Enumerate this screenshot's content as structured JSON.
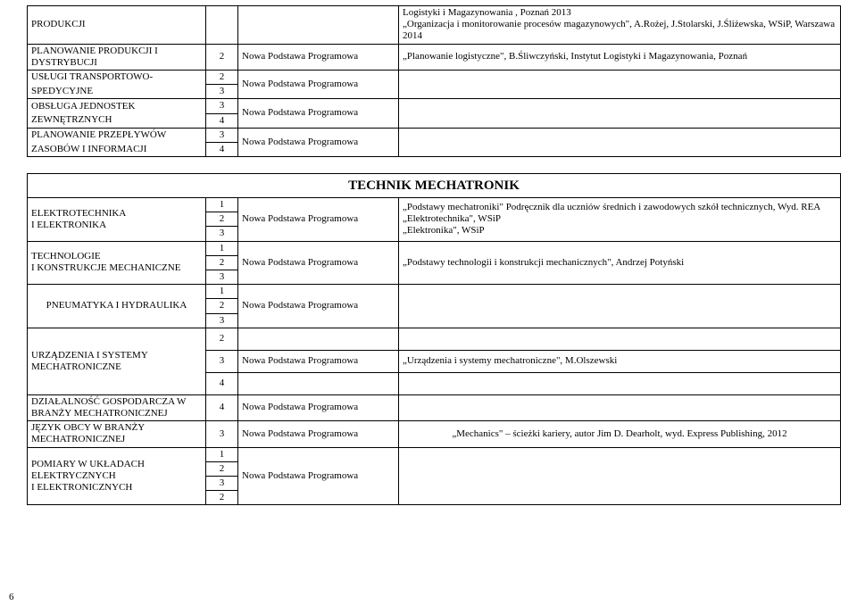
{
  "top_table": {
    "col3_text": "Nowa Podstawa Programowa",
    "rows": [
      {
        "label": "PRODUKCJI",
        "num": "",
        "desc": "Logistyki i Magazynowania , Poznań 2013\n„Organizacja i monitorowanie procesów magazynowych\", A.Rożej, J.Stolarski, J.Śliżewska, WSiP, Warszawa 2014"
      },
      {
        "label": "PLANOWANIE PRODUKCJI I DYSTRYBUCJI",
        "num": "2",
        "desc": "„Planowanie logistyczne\", B.Śliwczyński, Instytut Logistyki i Magazynowania, Poznań"
      },
      {
        "label_a": "USŁUGI TRANSPORTOWO-",
        "num_a": "2",
        "label_b": "SPEDYCYJNE",
        "num_b": "3",
        "desc": ""
      },
      {
        "label_a": "OBSŁUGA JEDNOSTEK",
        "num_a": "3",
        "label_b": "ZEWNĘTRZNYCH",
        "num_b": "4",
        "desc": ""
      },
      {
        "label_a": "PLANOWANIE PRZEPŁYWÓW",
        "num_a": "3",
        "label_b": "ZASOBÓW I INFORMACJI",
        "num_b": "4",
        "desc": ""
      }
    ]
  },
  "section_title": "TECHNIK MECHATRONIK",
  "bottom_table": {
    "col3_text": "Nowa Podstawa Programowa",
    "rows": {
      "r1": {
        "label": "ELEKTROTECHNIKA\nI ELEKTRONIKA",
        "nums": [
          "1",
          "2",
          "3"
        ],
        "desc": "„Podstawy mechatroniki\" Podręcznik dla uczniów średnich i zawodowych szkół technicznych, Wyd. REA\n„Elektrotechnika\", WSiP\n„Elektronika\", WSiP"
      },
      "r2": {
        "label": "TECHNOLOGIE\nI KONSTRUKCJE MECHANICZNE",
        "nums": [
          "1",
          "2",
          "3"
        ],
        "desc": "„Podstawy technologii i konstrukcji mechanicznych\", Andrzej Potyński"
      },
      "r3": {
        "label": "PNEUMATYKA I HYDRAULIKA",
        "nums": [
          "1",
          "2",
          "3"
        ],
        "desc": ""
      },
      "r4": {
        "label": "URZĄDZENIA I SYSTEMY MECHATRONICZNE",
        "nums": [
          "2",
          "3",
          "4"
        ],
        "desc_mid": "„Urządzenia i systemy mechatroniczne\", M.Olszewski"
      },
      "r5": {
        "label": "DZIAŁALNOŚĆ GOSPODARCZA W BRANŻY MECHATRONICZNEJ",
        "num": "4",
        "desc": ""
      },
      "r6": {
        "label": "JĘZYK OBCY W BRANŻY MECHATRONICZNEJ",
        "num": "3",
        "desc": "„Mechanics\" – ścieżki kariery, autor Jim D. Dearholt, wyd. Express Publishing, 2012"
      },
      "r7": {
        "label": "POMIARY W UKŁADACH ELEKTRYCZNYCH\nI ELEKTRONICZNYCH",
        "nums": [
          "1",
          "2",
          "3",
          "2"
        ],
        "desc": ""
      }
    }
  },
  "page_number": "6"
}
